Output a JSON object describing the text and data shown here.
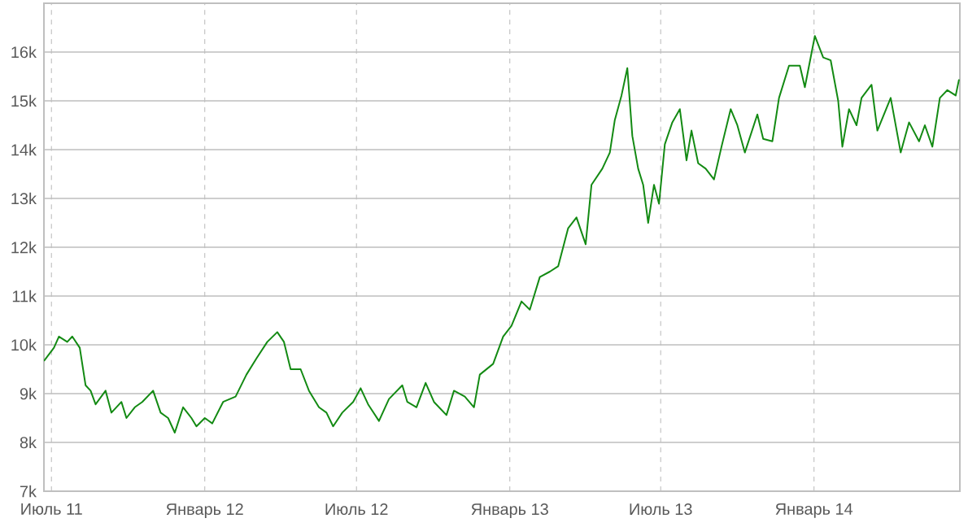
{
  "chart_data": {
    "type": "line",
    "grid": true,
    "xlim": [
      "2011-06-22",
      "2014-06-25"
    ],
    "ylim": [
      7000,
      17000
    ],
    "xticks": [
      {
        "value": "2011-07-01",
        "label": "Июль 11"
      },
      {
        "value": "2012-01-01",
        "label": "Январь 12"
      },
      {
        "value": "2012-07-01",
        "label": "Июль 12"
      },
      {
        "value": "2013-01-01",
        "label": "Январь 13"
      },
      {
        "value": "2013-07-01",
        "label": "Июль 13"
      },
      {
        "value": "2014-01-01",
        "label": "Январь 14"
      }
    ],
    "yticks": [
      {
        "value": 7000,
        "label": "7k"
      },
      {
        "value": 8000,
        "label": "8k"
      },
      {
        "value": 9000,
        "label": "9k"
      },
      {
        "value": 10000,
        "label": "10k"
      },
      {
        "value": 11000,
        "label": "11k"
      },
      {
        "value": 12000,
        "label": "12k"
      },
      {
        "value": 13000,
        "label": "13k"
      },
      {
        "value": 14000,
        "label": "14k"
      },
      {
        "value": 15000,
        "label": "15k"
      },
      {
        "value": 16000,
        "label": "16k"
      }
    ],
    "series": [
      {
        "color": "#138a13",
        "x": [
          "2011-06-22",
          "2011-07-04",
          "2011-07-10",
          "2011-07-20",
          "2011-07-26",
          "2011-08-04",
          "2011-08-11",
          "2011-08-17",
          "2011-08-23",
          "2011-09-04",
          "2011-09-11",
          "2011-09-23",
          "2011-09-29",
          "2011-10-09",
          "2011-10-18",
          "2011-10-31",
          "2011-11-09",
          "2011-11-18",
          "2011-11-26",
          "2011-12-06",
          "2011-12-16",
          "2011-12-22",
          "2012-01-01",
          "2012-01-10",
          "2012-01-23",
          "2012-02-07",
          "2012-02-20",
          "2012-03-03",
          "2012-03-16",
          "2012-03-28",
          "2012-04-05",
          "2012-04-13",
          "2012-04-25",
          "2012-05-05",
          "2012-05-17",
          "2012-05-26",
          "2012-06-03",
          "2012-06-14",
          "2012-06-27",
          "2012-07-06",
          "2012-07-15",
          "2012-07-28",
          "2012-08-09",
          "2012-08-25",
          "2012-08-31",
          "2012-09-11",
          "2012-09-22",
          "2012-10-02",
          "2012-10-17",
          "2012-10-26",
          "2012-11-08",
          "2012-11-19",
          "2012-11-26",
          "2012-12-12",
          "2012-12-24",
          "2013-01-03",
          "2013-01-15",
          "2013-01-25",
          "2013-02-06",
          "2013-02-18",
          "2013-02-28",
          "2013-03-12",
          "2013-03-22",
          "2013-04-02",
          "2013-04-09",
          "2013-04-22",
          "2013-05-01",
          "2013-05-07",
          "2013-05-15",
          "2013-05-22",
          "2013-05-28",
          "2013-06-04",
          "2013-06-10",
          "2013-06-16",
          "2013-06-23",
          "2013-06-29",
          "2013-07-06",
          "2013-07-15",
          "2013-07-24",
          "2013-08-01",
          "2013-08-07",
          "2013-08-15",
          "2013-08-24",
          "2013-09-03",
          "2013-09-12",
          "2013-09-23",
          "2013-10-01",
          "2013-10-10",
          "2013-10-25",
          "2013-11-01",
          "2013-11-12",
          "2013-11-20",
          "2013-12-02",
          "2013-12-15",
          "2013-12-21",
          "2014-01-02",
          "2014-01-12",
          "2014-01-21",
          "2014-01-30",
          "2014-02-04",
          "2014-02-12",
          "2014-02-21",
          "2014-02-27",
          "2014-03-11",
          "2014-03-18",
          "2014-04-03",
          "2014-04-15",
          "2014-04-25",
          "2014-05-07",
          "2014-05-14",
          "2014-05-23",
          "2014-06-01",
          "2014-06-10",
          "2014-06-20",
          "2014-06-24"
        ],
        "values": [
          9670,
          9940,
          10170,
          10060,
          10170,
          9940,
          9170,
          9060,
          8780,
          9060,
          8610,
          8830,
          8500,
          8720,
          8830,
          9060,
          8610,
          8500,
          8200,
          8720,
          8500,
          8330,
          8500,
          8390,
          8830,
          8940,
          9390,
          9720,
          10060,
          10260,
          10060,
          9500,
          9500,
          9060,
          8720,
          8610,
          8330,
          8610,
          8830,
          9110,
          8780,
          8440,
          8890,
          9170,
          8830,
          8720,
          9220,
          8830,
          8560,
          9060,
          8940,
          8720,
          9390,
          9610,
          10170,
          10390,
          10890,
          10720,
          11390,
          11500,
          11610,
          12390,
          12610,
          12060,
          13280,
          13610,
          13940,
          14610,
          15110,
          15670,
          14280,
          13610,
          13280,
          12500,
          13280,
          12890,
          14110,
          14560,
          14830,
          13780,
          14390,
          13720,
          13610,
          13390,
          14060,
          14830,
          14500,
          13940,
          14720,
          14220,
          14170,
          15060,
          15720,
          15720,
          15280,
          16330,
          15890,
          15830,
          15000,
          14060,
          14830,
          14500,
          15060,
          15330,
          14390,
          15060,
          13940,
          14560,
          14170,
          14500,
          14060,
          15060,
          15220,
          15110,
          15440
        ]
      }
    ]
  }
}
